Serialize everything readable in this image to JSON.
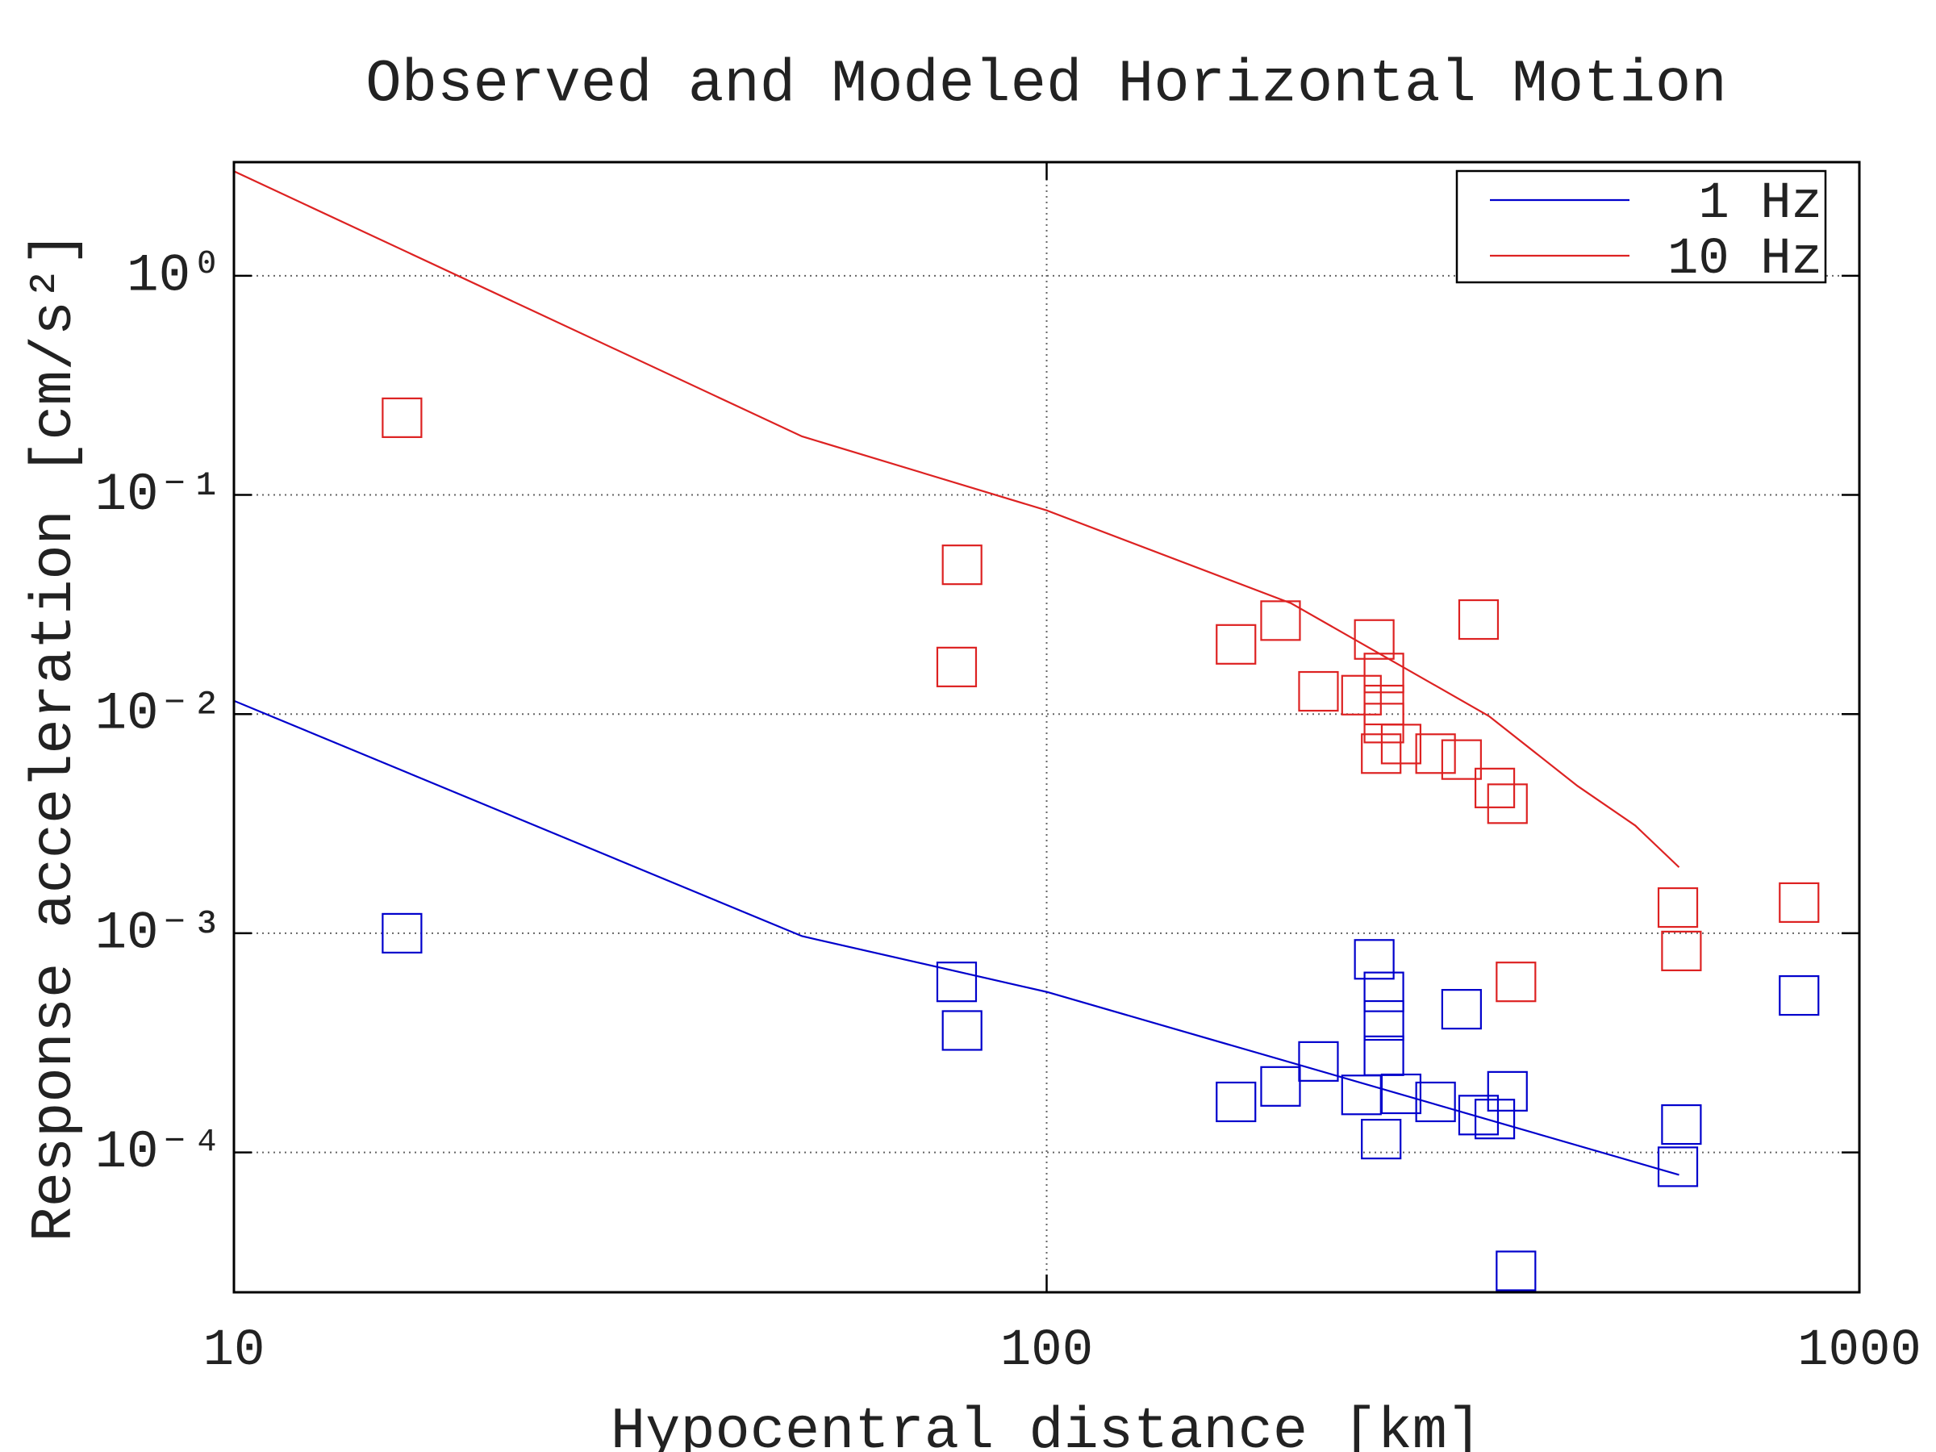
{
  "chart_data": {
    "type": "line",
    "title": "Observed and Modeled Horizontal Motion",
    "xlabel": "Hypocentral distance [km]",
    "ylabel": "Response acceleration [cm/s²]",
    "xscale": "log",
    "yscale": "log",
    "xlim": [
      10,
      1000
    ],
    "ylim": [
      2.3e-05,
      3.3
    ],
    "xticks": [
      10,
      100,
      1000
    ],
    "yticks": [
      {
        "value": 1,
        "label": "10⁰"
      },
      {
        "value": 0.1,
        "label": "10⁻¹"
      },
      {
        "value": 0.01,
        "label": "10⁻²"
      },
      {
        "value": 0.001,
        "label": "10⁻³"
      },
      {
        "value": 0.0001,
        "label": "10⁻⁴"
      }
    ],
    "grid": true,
    "legend": "upper right",
    "series": [
      {
        "name": "1 Hz",
        "color": "#0000cc",
        "x": [
          10,
          50,
          100,
          600
        ],
        "values": [
          0.0115,
          0.00097,
          0.00054,
          7.9e-05
        ],
        "observed": {
          "x": [
            16.1,
            77.5,
            78.7,
            171,
            194,
            216,
            244,
            253,
            260,
            260,
            260,
            258,
            273,
            301,
            324,
            340,
            356,
            369,
            378,
            598,
            604,
            843
          ],
          "values": [
            0.001,
            0.0006,
            0.00036,
            0.00017,
            0.0002,
            0.00026,
            0.000183,
            0.00076,
            0.00054,
            0.0004,
            0.000276,
            0.000115,
            0.000185,
            0.00017,
            0.00045,
            0.000148,
            0.000142,
            0.00019,
            2.88e-05,
            8.6e-05,
            0.000134,
            0.00052
          ]
        }
      },
      {
        "name": "10 Hz",
        "color": "#dd2222",
        "x": [
          10,
          50,
          100,
          200,
          350,
          450,
          530,
          600
        ],
        "values": [
          3.0,
          0.185,
          0.085,
          0.032,
          0.0098,
          0.0047,
          0.0031,
          0.002
        ],
        "observed": {
          "x": [
            16.1,
            78.7,
            77.5,
            171,
            194,
            216,
            244,
            253,
            260,
            260,
            260,
            258,
            273,
            301,
            324,
            340,
            356,
            369,
            378,
            598,
            604,
            843
          ],
          "values": [
            0.225,
            0.048,
            0.0164,
            0.0208,
            0.0267,
            0.0127,
            0.0122,
            0.0219,
            0.0154,
            0.011,
            0.0091,
            0.0066,
            0.0073,
            0.0066,
            0.0062,
            0.027,
            0.0046,
            0.0039,
            0.0006,
            0.00131,
            0.00083,
            0.00138
          ]
        }
      }
    ]
  }
}
